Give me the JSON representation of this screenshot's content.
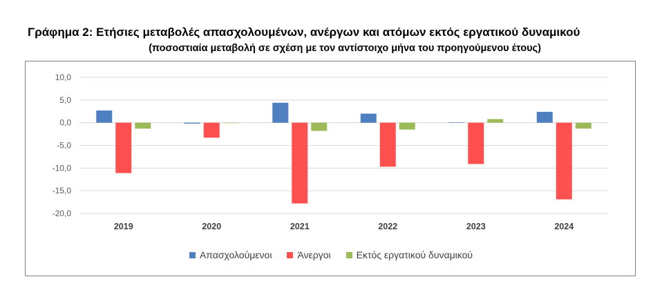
{
  "title": "Γράφημα 2: Ετήσιες μεταβολές απασχολουμένων, ανέργων και ατόμων εκτός εργατικού δυναμικού",
  "subtitle": "(ποσοστιαία μεταβολή σε σχέση με τον αντίστοιχο μήνα του προηγούμενου έτους)",
  "chart_data": {
    "type": "bar",
    "categories": [
      "2019",
      "2020",
      "2021",
      "2022",
      "2023",
      "2024"
    ],
    "series": [
      {
        "name": "Απασχολούμενοι",
        "color": "#4e7fc0",
        "values": [
          2.7,
          -0.2,
          4.4,
          2.0,
          0.1,
          2.4
        ]
      },
      {
        "name": "Άνεργοι",
        "color": "#ff5050",
        "values": [
          -11.1,
          -3.3,
          -17.8,
          -9.7,
          -9.1,
          -16.9
        ]
      },
      {
        "name": "Εκτός εργατικού δυναμικού",
        "color": "#9bbb59",
        "values": [
          -1.3,
          0.0,
          -1.8,
          -1.5,
          0.8,
          -1.3
        ]
      }
    ],
    "ylim": [
      -20,
      10
    ],
    "yticks": [
      "10,0",
      "5,0",
      "0,0",
      "-5,0",
      "-10,0",
      "-15,0",
      "-20,0"
    ],
    "ytick_values": [
      10,
      5,
      0,
      -5,
      -10,
      -15,
      -20
    ],
    "grid": true,
    "legend_position": "bottom",
    "xlabel": "",
    "ylabel": ""
  }
}
